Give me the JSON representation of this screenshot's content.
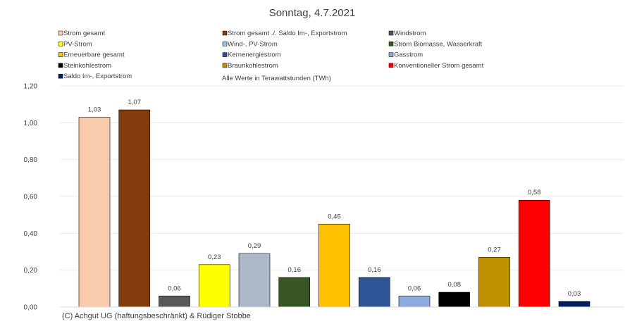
{
  "chart_data": {
    "type": "bar",
    "title": "Sonntag, 4.7.2021",
    "annotation": "Alle Werte in Terawattstunden (TWh)",
    "footer": "(C) Achgut UG (haftungsbeschränkt) & Rüdiger Stobbe",
    "ylim": [
      0,
      1.2
    ],
    "yticks": [
      "0,00",
      "0,20",
      "0,40",
      "0,60",
      "0,80",
      "1,00",
      "1,20"
    ],
    "series": [
      {
        "name": "Strom gesamt",
        "value": 1.03,
        "label": "1,03",
        "color": "#F8CBAD"
      },
      {
        "name": "Strom gesamt ./. Saldo Im-, Exportstrom",
        "value": 1.07,
        "label": "1,07",
        "color": "#843C0C"
      },
      {
        "name": "Windstrom",
        "value": 0.06,
        "label": "0,06",
        "color": "#595959"
      },
      {
        "name": "PV-Strom",
        "value": 0.23,
        "label": "0,23",
        "color": "#FFFF00"
      },
      {
        "name": "Wind-, PV-Strom",
        "value": 0.29,
        "label": "0,29",
        "color": "#ADB9CA"
      },
      {
        "name": "Strom Biomasse, Wasserkraft",
        "value": 0.16,
        "label": "0,16",
        "color": "#375623"
      },
      {
        "name": "Erneuerbare gesamt",
        "value": 0.45,
        "label": "0,45",
        "color": "#FFC000"
      },
      {
        "name": "Kernenergiestrom",
        "value": 0.16,
        "label": "0,16",
        "color": "#2F5597"
      },
      {
        "name": "Gasstrom",
        "value": 0.06,
        "label": "0,06",
        "color": "#8FAADC"
      },
      {
        "name": "Steinkohlestrom",
        "value": 0.08,
        "label": "0,08",
        "color": "#000000"
      },
      {
        "name": "Braunkohlestrom",
        "value": 0.27,
        "label": "0,27",
        "color": "#BF9000"
      },
      {
        "name": "Konventioneller Strom gesamt",
        "value": 0.58,
        "label": "0,58",
        "color": "#FF0000"
      },
      {
        "name": "Saldo Im-, Exportstrom",
        "value": 0.03,
        "label": "0,03",
        "color": "#002060"
      }
    ]
  }
}
